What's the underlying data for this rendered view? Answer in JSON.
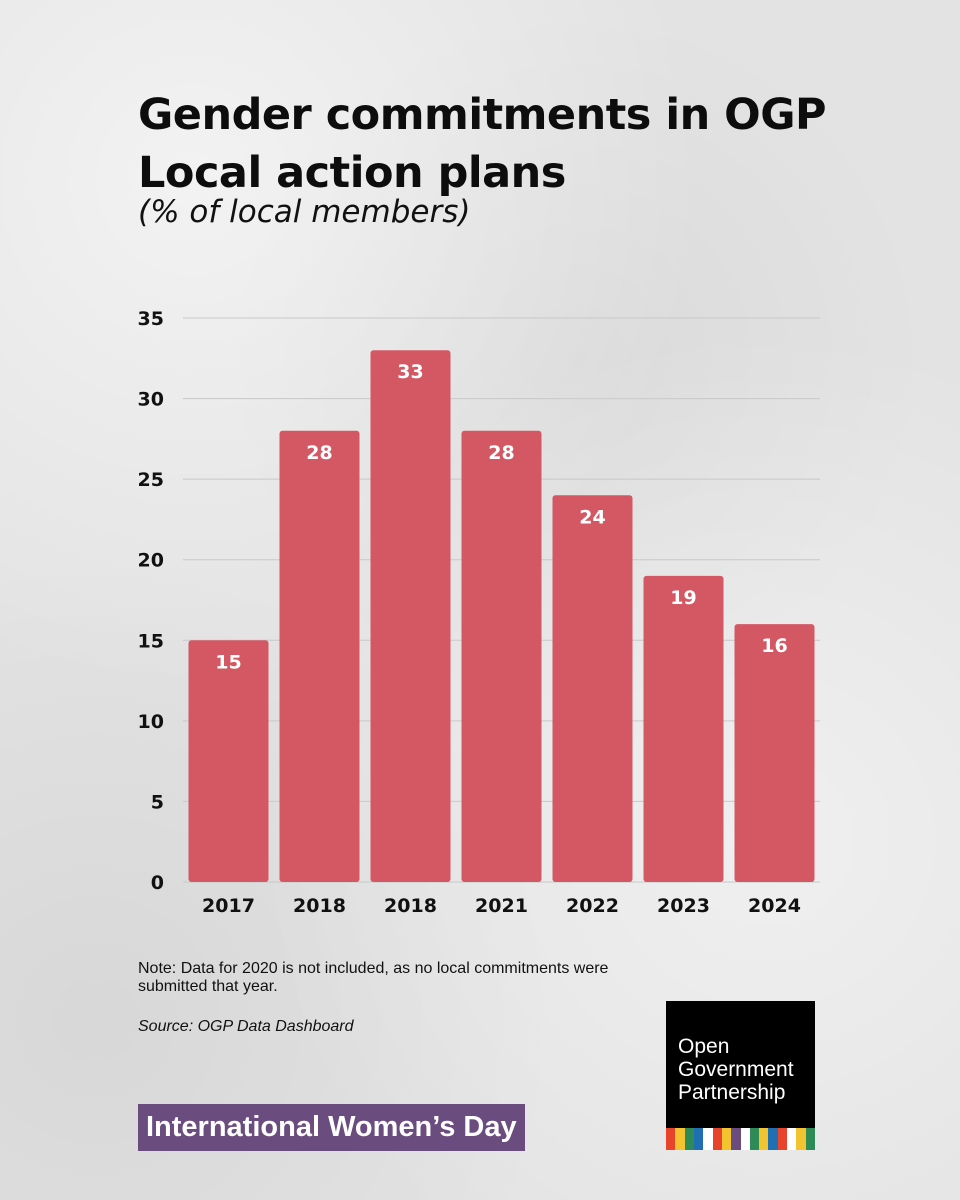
{
  "title": "Gender commitments in OGP Local action plans",
  "subtitle": "(% of local members)",
  "chart_data": {
    "type": "bar",
    "categories": [
      "2017",
      "2018",
      "2018",
      "2021",
      "2022",
      "2023",
      "2024"
    ],
    "values": [
      15,
      28,
      33,
      28,
      24,
      19,
      16
    ],
    "ylim": [
      0,
      35
    ],
    "yticks": [
      0,
      5,
      10,
      15,
      20,
      25,
      30,
      35
    ],
    "grid": true,
    "bar_color": "#d35864",
    "label_color": "#ffffff"
  },
  "note": "Note: Data for 2020 is not included, as no local commitments were submitted that year.",
  "source": "Source: OGP Data Dashboard",
  "banner": "International Women’s Day",
  "banner_color": "#6b4c7f",
  "logo": {
    "text": "Open\nGovernment\nPartnership",
    "stripe_colors": [
      "#e8442c",
      "#f4c430",
      "#2e8b57",
      "#1f6fb2",
      "#ffffff",
      "#e8442c",
      "#f4c430",
      "#6b4c7f",
      "#ffffff",
      "#2e8b57",
      "#f4c430",
      "#1f6fb2",
      "#e8442c",
      "#ffffff",
      "#f4c430",
      "#2e8b57"
    ]
  }
}
